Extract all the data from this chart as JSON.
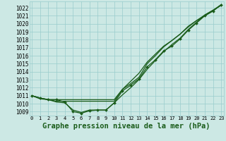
{
  "bg_color": "#cce8e4",
  "grid_color": "#99cccc",
  "line_color": "#1a5c1a",
  "title": "Graphe pression niveau de la mer (hPa)",
  "title_fontsize": 7.5,
  "xmin": 0,
  "xmax": 23,
  "ymin": 1008.5,
  "ymax": 1022.8,
  "yticks": [
    1009,
    1010,
    1011,
    1012,
    1013,
    1014,
    1015,
    1016,
    1017,
    1018,
    1019,
    1020,
    1021,
    1022
  ],
  "series": [
    [
      1011.0,
      1010.7,
      1010.5,
      1010.5,
      1010.2,
      1009.0,
      1008.8,
      1009.1,
      1009.2,
      1009.2,
      1010.1,
      1011.6,
      1012.3,
      1013.1,
      1014.6,
      1015.5,
      1016.6,
      1017.2,
      1018.1,
      1019.2,
      1020.1,
      1021.0,
      1021.6,
      1022.4
    ],
    [
      1011.0,
      1010.7,
      1010.5,
      1010.2,
      1010.1,
      1009.2,
      1008.9,
      1009.2,
      1009.2,
      1009.2,
      1010.1,
      1011.1,
      1012.0,
      1013.0,
      1014.3,
      1015.4,
      1016.5,
      1017.4,
      1018.2,
      1019.3,
      1020.2,
      1021.1,
      1021.7,
      1022.3
    ],
    [
      1011.0,
      1010.6,
      1010.5,
      1010.3,
      1010.3,
      1010.3,
      1010.3,
      1010.3,
      1010.3,
      1010.3,
      1010.3,
      1011.8,
      1012.8,
      1013.8,
      1015.2,
      1016.2,
      1017.2,
      1017.9,
      1018.7,
      1019.6,
      1020.4,
      1021.1,
      1021.7,
      1022.4
    ],
    [
      1011.0,
      1010.7,
      1010.5,
      1010.5,
      1010.5,
      1010.5,
      1010.5,
      1010.5,
      1010.5,
      1010.5,
      1010.5,
      1011.8,
      1012.5,
      1013.3,
      1015.0,
      1016.0,
      1017.1,
      1017.9,
      1018.7,
      1019.7,
      1020.4,
      1021.0,
      1021.6,
      1022.4
    ]
  ],
  "xtick_fontsize": 5.0,
  "ytick_fontsize": 5.5
}
